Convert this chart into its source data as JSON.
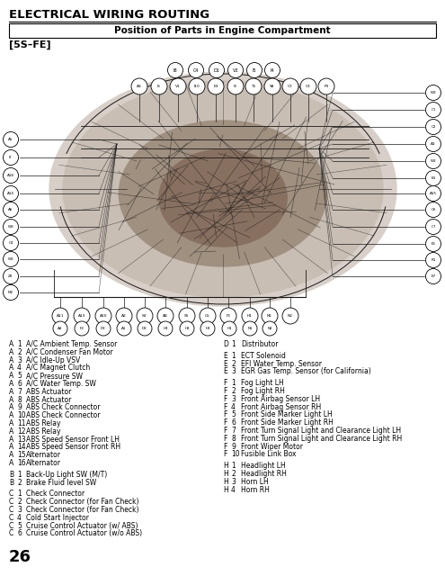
{
  "title": "ELECTRICAL WIRING ROUTING",
  "subtitle": "Position of Parts in Engine Compartment",
  "model": "[5S–FE]",
  "page_number": "26",
  "left_legend": [
    [
      "A",
      "1",
      "A/C Ambient Temp. Sensor"
    ],
    [
      "A",
      "2",
      "A/C Condenser Fan Motor"
    ],
    [
      "A",
      "3",
      "A/C Idle-Up VSV"
    ],
    [
      "A",
      "4",
      "A/C Magnet Clutch"
    ],
    [
      "A",
      "5",
      "A/C Pressure SW"
    ],
    [
      "A",
      "6",
      "A/C Water Temp. SW"
    ],
    [
      "A",
      "7",
      "ABS Actuator"
    ],
    [
      "A",
      "8",
      "ABS Actuator"
    ],
    [
      "A",
      "9",
      "ABS Check Connector"
    ],
    [
      "A",
      "10",
      "ABS Check Connector"
    ],
    [
      "A",
      "11",
      "ABS Relay"
    ],
    [
      "A",
      "12",
      "ABS Relay"
    ],
    [
      "A",
      "13",
      "ABS Speed Sensor Front LH"
    ],
    [
      "A",
      "14",
      "ABS Speed Sensor Front RH"
    ],
    [
      "A",
      "15",
      "Alternator"
    ],
    [
      "A",
      "16",
      "Alternator"
    ],
    [
      "",
      "",
      ""
    ],
    [
      "B",
      "1",
      "Back-Up Light SW (M/T)"
    ],
    [
      "B",
      "2",
      "Brake Fluid level SW"
    ],
    [
      "",
      "",
      ""
    ],
    [
      "C",
      "1",
      "Check Connector"
    ],
    [
      "C",
      "2",
      "Check Connector (for Fan Check)"
    ],
    [
      "C",
      "3",
      "Check Connector (for Fan Check)"
    ],
    [
      "C",
      "4",
      "Cold Start Injector"
    ],
    [
      "C",
      "5",
      "Cruise Control Actuator (w/ ABS)"
    ],
    [
      "C",
      "6",
      "Cruise Control Actuator (w/o ABS)"
    ]
  ],
  "right_legend": [
    [
      "D",
      "1",
      "Distributor"
    ],
    [
      "",
      "",
      ""
    ],
    [
      "E",
      "1",
      "ECT Solenoid"
    ],
    [
      "E",
      "2",
      "EFI Water Temp. Sensor"
    ],
    [
      "E",
      "3",
      "EGR Gas Temp. Sensor (for California)"
    ],
    [
      "",
      "",
      ""
    ],
    [
      "F",
      "1",
      "Fog Light LH"
    ],
    [
      "F",
      "2",
      "Fog Light RH"
    ],
    [
      "F",
      "3",
      "Front Airbag Sensor LH"
    ],
    [
      "F",
      "4",
      "Front Airbag Sensor RH"
    ],
    [
      "F",
      "5",
      "Front Side Marker Light LH"
    ],
    [
      "F",
      "6",
      "Front Side Marker Light RH"
    ],
    [
      "F",
      "7",
      "Front Turn Signal Light and Clearance Light LH"
    ],
    [
      "F",
      "8",
      "Front Turn Signal Light and Clearance Light RH"
    ],
    [
      "F",
      "9",
      "Front Wiper Motor"
    ],
    [
      "F",
      "10",
      "Fusible Link Box"
    ],
    [
      "",
      "",
      ""
    ],
    [
      "H",
      "1",
      "Headlight LH"
    ],
    [
      "H",
      "2",
      "Headlight RH"
    ],
    [
      "H",
      "3",
      "Horn LH"
    ],
    [
      "H",
      "4",
      "Horn RH"
    ]
  ],
  "top_row1_connectors": [
    [
      "I8",
      195
    ],
    [
      "C4",
      218
    ],
    [
      "D1",
      241
    ],
    [
      "V3",
      262
    ],
    [
      "I5",
      283
    ],
    [
      "I4",
      303
    ]
  ],
  "top_row2_connectors": [
    [
      "A3",
      155
    ],
    [
      "I6",
      177
    ],
    [
      "V1",
      198
    ],
    [
      "I10",
      219
    ],
    [
      "E3",
      240
    ],
    [
      "I3",
      262
    ],
    [
      "T1",
      282
    ],
    [
      "S8",
      303
    ],
    [
      "C2",
      323
    ],
    [
      "C3",
      343
    ],
    [
      "F9",
      363
    ]
  ],
  "bottom_row1_connectors": [
    [
      "A11",
      67
    ],
    [
      "A13",
      91
    ],
    [
      "A10",
      115
    ],
    [
      "A2",
      138
    ],
    [
      "S4",
      161
    ],
    [
      "A8",
      184
    ],
    [
      "S5",
      208
    ],
    [
      "C5",
      231
    ],
    [
      "F1",
      254
    ],
    [
      "H1",
      278
    ],
    [
      "N1",
      300
    ],
    [
      "N2",
      323
    ]
  ],
  "bottom_row2_connectors": [
    [
      "A4",
      67
    ],
    [
      "F2",
      91
    ],
    [
      "D2",
      115
    ],
    [
      "A1",
      138
    ],
    [
      "D3",
      161
    ],
    [
      "H4",
      184
    ],
    [
      "H3",
      208
    ],
    [
      "H2",
      231
    ],
    [
      "H1",
      255
    ],
    [
      "N1",
      278
    ],
    [
      "N2",
      300
    ]
  ],
  "right_side_connectors": [
    [
      "W2",
      482,
      103
    ],
    [
      "C1",
      482,
      122
    ],
    [
      "C2",
      482,
      141
    ],
    [
      "A3",
      482,
      160
    ],
    [
      "W2",
      482,
      179
    ],
    [
      "B1",
      482,
      198
    ],
    [
      "A15",
      482,
      215
    ],
    [
      "C6",
      482,
      233
    ],
    [
      "C7",
      482,
      252
    ],
    [
      "E1",
      482,
      271
    ],
    [
      "R1",
      482,
      289
    ],
    [
      "E7",
      482,
      307
    ]
  ],
  "left_side_connectors": [
    [
      "A5",
      12,
      155
    ],
    [
      "I7",
      12,
      175
    ],
    [
      "A18",
      12,
      195
    ],
    [
      "A14",
      12,
      215
    ],
    [
      "A6",
      12,
      233
    ],
    [
      "W3",
      12,
      252
    ],
    [
      "C4",
      12,
      270
    ],
    [
      "W2",
      12,
      288
    ],
    [
      "Z8",
      12,
      307
    ],
    [
      "M2",
      12,
      325
    ]
  ],
  "bg_color": "#ffffff",
  "text_color": "#000000"
}
